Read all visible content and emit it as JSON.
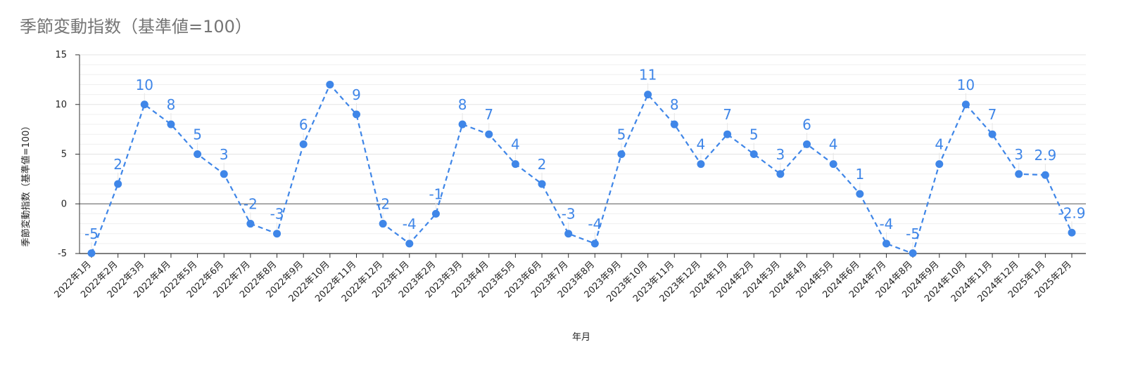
{
  "chart_data": {
    "type": "line",
    "title": "季節変動指数（基準値=100）",
    "xlabel": "年月",
    "ylabel": "季節変動指数（基準値=100）",
    "ylim": [
      -5,
      15
    ],
    "yticks": [
      -5,
      0,
      5,
      10,
      15
    ],
    "grid": true,
    "legend": "none",
    "line_style": "dashed",
    "colors": {
      "series": "#3f86e8",
      "grid": "#e3e3e3",
      "axis": "#333333",
      "zero_line": "#777777"
    },
    "categories": [
      "2022年1月",
      "2022年2月",
      "2022年3月",
      "2022年4月",
      "2022年5月",
      "2022年6月",
      "2022年7月",
      "2022年8月",
      "2022年9月",
      "2022年10月",
      "2022年11月",
      "2022年12月",
      "2023年1月",
      "2023年2月",
      "2023年3月",
      "2023年4月",
      "2023年5月",
      "2023年6月",
      "2023年7月",
      "2023年8月",
      "2023年9月",
      "2023年10月",
      "2023年11月",
      "2023年12月",
      "2024年1月",
      "2024年2月",
      "2024年3月",
      "2024年4月",
      "2024年5月",
      "2024年6月",
      "2024年7月",
      "2024年8月",
      "2024年9月",
      "2024年10月",
      "2024年11月",
      "2024年12月",
      "2025年1月",
      "2025年2月"
    ],
    "series": [
      {
        "values": [
          -5,
          2,
          10,
          8,
          5,
          3,
          -2,
          -3,
          6,
          12,
          9,
          -2,
          -4,
          -1,
          8,
          7,
          4,
          2,
          -3,
          -4,
          5,
          11,
          8,
          4,
          7,
          5,
          3,
          6,
          4,
          1,
          -4,
          -5,
          4,
          10,
          7,
          3,
          2.9,
          -2.9
        ],
        "labels": [
          "-5",
          "2",
          "10",
          "8",
          "5",
          "3",
          "-2",
          "-3",
          "6",
          "",
          "9",
          "-2",
          "-4",
          "-1",
          "8",
          "7",
          "4",
          "2",
          "-3",
          "-4",
          "5",
          "11",
          "8",
          "4",
          "7",
          "5",
          "3",
          "6",
          "4",
          "1",
          "-4",
          "-5",
          "4",
          "10",
          "7",
          "3",
          "2.9",
          "-2.9"
        ]
      }
    ]
  }
}
